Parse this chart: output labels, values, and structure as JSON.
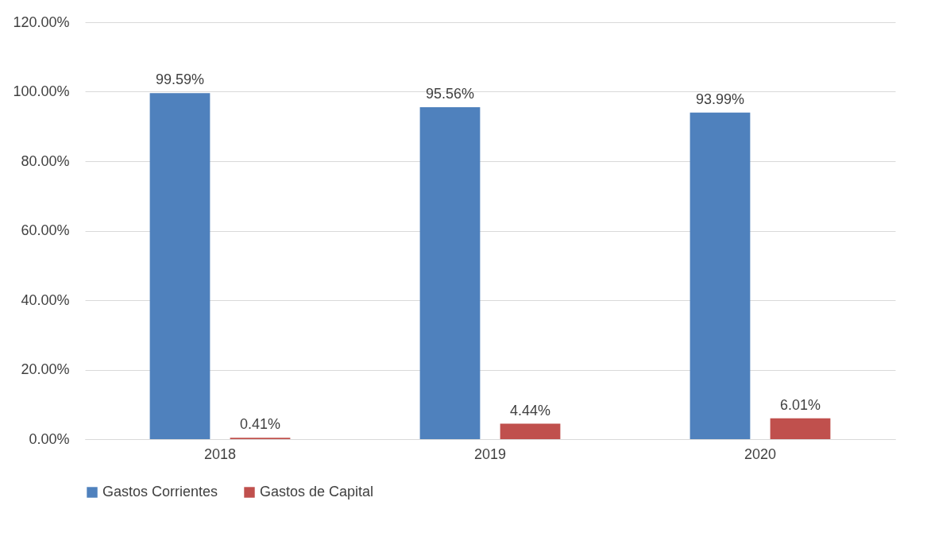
{
  "chart_data": {
    "type": "bar",
    "categories": [
      "2018",
      "2019",
      "2020"
    ],
    "series": [
      {
        "name": "Gastos Corrientes",
        "color": "#4f81bd",
        "values": [
          99.59,
          95.56,
          93.99
        ],
        "value_labels": [
          "99.59%",
          "95.56%",
          "93.99%"
        ]
      },
      {
        "name": "Gastos de Capital",
        "color": "#c0504d",
        "values": [
          0.41,
          4.44,
          6.01
        ],
        "value_labels": [
          "0.41%",
          "4.44%",
          "6.01%"
        ]
      }
    ],
    "ylim": [
      0,
      120
    ],
    "yticks": [
      {
        "value": 0,
        "label": "0.00%"
      },
      {
        "value": 20,
        "label": "20.00%"
      },
      {
        "value": 40,
        "label": "40.00%"
      },
      {
        "value": 60,
        "label": "60.00%"
      },
      {
        "value": 80,
        "label": "80.00%"
      },
      {
        "value": 100,
        "label": "100.00%"
      },
      {
        "value": 120,
        "label": "120.00%"
      }
    ],
    "grid": "y",
    "legend": "bottom"
  }
}
